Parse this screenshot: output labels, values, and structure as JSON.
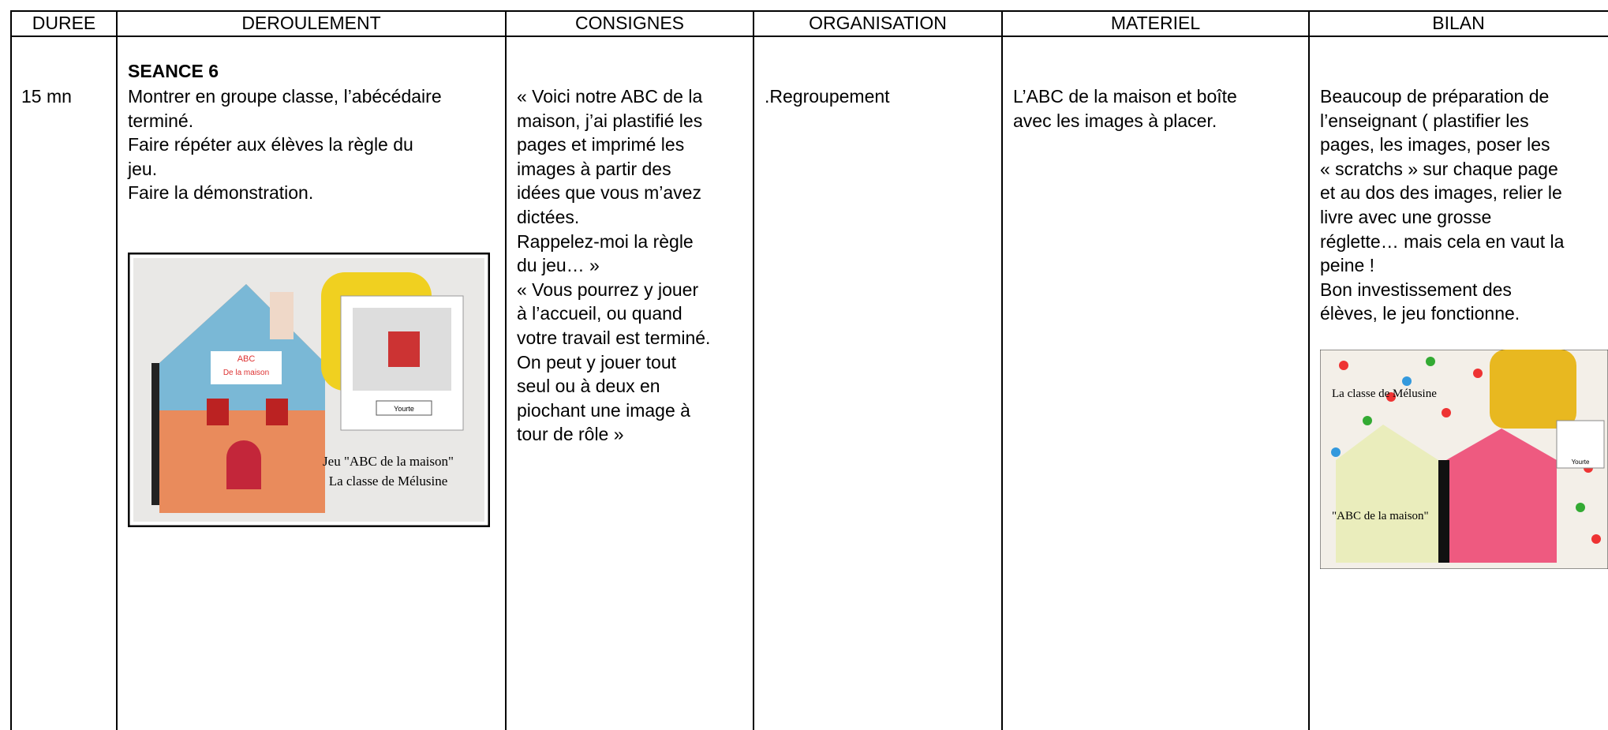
{
  "header": {
    "cells": [
      "DUREE",
      "DEROULEMENT",
      "CONSIGNES",
      "ORGANISATION",
      "MATERIEL",
      "BILAN"
    ]
  },
  "row": {
    "duree": [
      "15 mn"
    ],
    "deroulement_title": "SEANCE 6",
    "deroulement": [
      "Montrer en groupe classe, l’abécédaire",
      "terminé.",
      "Faire répéter aux élèves la règle du",
      "jeu.",
      "Faire la démonstration."
    ],
    "consignes": [
      "« Voici notre ABC de la",
      "maison, j’ai plastifié les",
      "pages et imprimé les",
      "images à partir des",
      "idées que vous m’avez",
      "dictées.",
      "Rappelez-moi la règle",
      "du jeu… »",
      "« Vous pourrez y jouer",
      "à l’accueil, ou quand",
      "votre travail est terminé.",
      "On peut y jouer tout",
      "seul ou à deux en",
      "piochant une image à",
      "tour de rôle »"
    ],
    "organisation": [
      ".Regroupement"
    ],
    "materiel": [
      "L’ABC de la maison et boîte",
      "avec les images à placer."
    ],
    "bilan": [
      "Beaucoup de préparation de",
      "l’enseignant (  plastifier  les",
      "pages, les images, poser les",
      "« scratchs » sur chaque page",
      "et au dos des images, relier le",
      "livre avec une grosse",
      "réglette… mais cela en vaut la",
      "peine !",
      "Bon investissement des",
      "élèves, le jeu fonctionne."
    ]
  },
  "photo1": {
    "title": "ABC",
    "subtitle": "De la maison",
    "card": "Yourte",
    "caption": [
      "Jeu \"ABC de la maison\"",
      "La classe de Mélusine"
    ]
  },
  "photo2": {
    "top": "La classe de Mélusine",
    "bottom": "\"ABC de la maison\"",
    "card": "Yourte"
  }
}
